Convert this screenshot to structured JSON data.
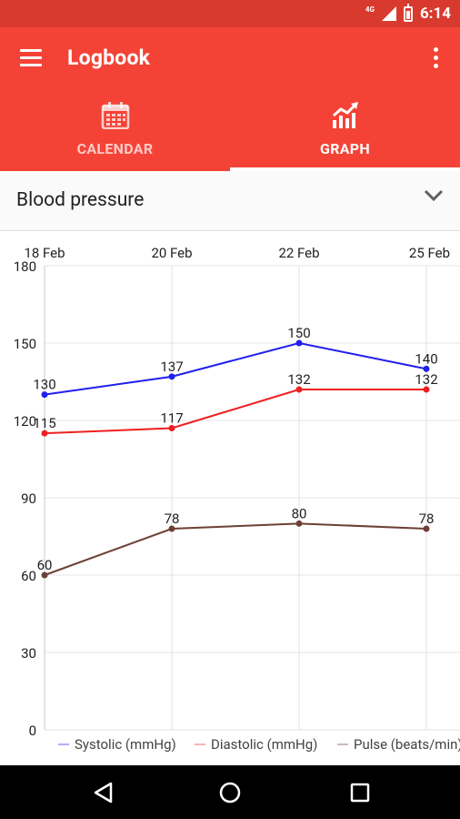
{
  "status_bar": {
    "network": "4G",
    "time": "6:14"
  },
  "app_bar": {
    "title": "Logbook",
    "menu_icon": "hamburger-menu-icon",
    "more_icon": "more-vert-icon"
  },
  "tabs": [
    {
      "label": "CALENDAR",
      "icon": "calendar-icon",
      "selected": false
    },
    {
      "label": "GRAPH",
      "icon": "graph-icon",
      "selected": true
    }
  ],
  "dropdown": {
    "selected": "Blood pressure"
  },
  "colors": {
    "primary": "#f44336",
    "primary_dark": "#d83a2d",
    "systolic": "#ef1f1f",
    "diastolic": "#1f1fef",
    "pulse": "#6d4035"
  },
  "chart_data": {
    "type": "line",
    "x": [
      "18 Feb",
      "20 Feb",
      "22 Feb",
      "25 Feb"
    ],
    "ylim": [
      0,
      180
    ],
    "yticks": [
      "0",
      "30",
      "60",
      "90",
      "120",
      "150",
      "180"
    ],
    "series": [
      {
        "name": "Systolic (mmHg)",
        "values": [
          130,
          137,
          150,
          140
        ],
        "labels": [
          "130",
          "137",
          "150",
          "140"
        ]
      },
      {
        "name": "Diastolic (mmHg)",
        "values": [
          115,
          117,
          132,
          132
        ],
        "labels": [
          "115",
          "117",
          "132",
          "132"
        ]
      },
      {
        "name": "Pulse (beats/min)",
        "values": [
          60,
          78,
          80,
          78
        ],
        "labels": [
          "60",
          "78",
          "80",
          "78"
        ]
      }
    ],
    "legend_position": "bottom",
    "grid": true
  }
}
